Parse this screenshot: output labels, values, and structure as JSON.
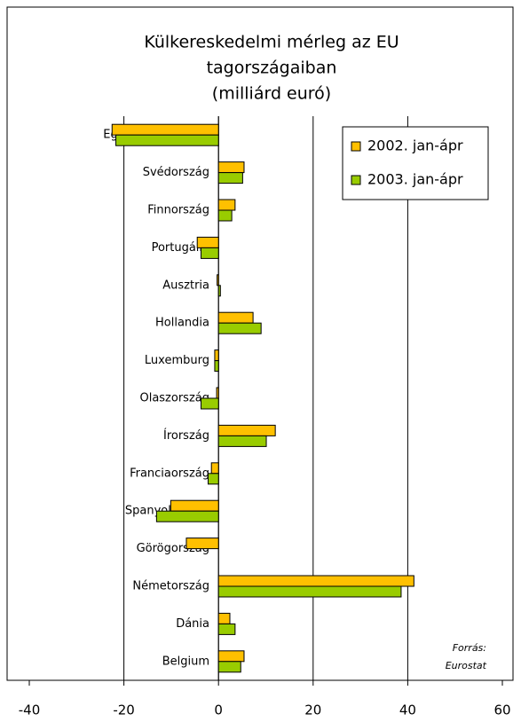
{
  "chart_data": {
    "type": "barh",
    "title": [
      "Külkereskedelmi mérleg az EU",
      "tagországaiban",
      "(milliárd euró)"
    ],
    "categories": [
      "Egyesült Királyság",
      "Svédország",
      "Finnország",
      "Portugália",
      "Ausztria",
      "Hollandia",
      "Luxemburg",
      "Olaszország",
      "Írország",
      "Franciaország",
      "Spanyolország",
      "Görögország",
      "Németország",
      "Dánia",
      "Belgium"
    ],
    "series": [
      {
        "name": "2002. jan-ápr",
        "color": "#ffc000",
        "values": [
          -22.5,
          5.4,
          3.5,
          -4.5,
          -0.3,
          7.3,
          -0.8,
          -0.4,
          12,
          -1.5,
          -10.1,
          -6.8,
          41.3,
          2.4,
          5.4
        ]
      },
      {
        "name": "2003. jan-ápr",
        "color": "#99cc00",
        "values": [
          -21.7,
          5.1,
          2.8,
          -3.7,
          0.4,
          9,
          -0.8,
          -3.7,
          10.1,
          -2.2,
          -13.1,
          null,
          38.6,
          3.5,
          4.7
        ]
      }
    ],
    "xlim": [
      -40,
      60
    ],
    "xticks": [
      -40,
      -20,
      0,
      20,
      40,
      60
    ],
    "grid": true,
    "legend": "top-right",
    "annotation": [
      "Forrás:",
      "Eurostat"
    ]
  }
}
